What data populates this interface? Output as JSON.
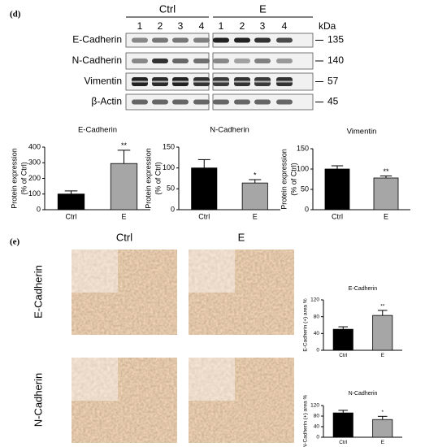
{
  "panel_d": {
    "label": "(d)",
    "groups": [
      "Ctrl",
      "E"
    ],
    "lanes": [
      "1",
      "2",
      "3",
      "4",
      "1",
      "2",
      "3",
      "4"
    ],
    "unit": "kDa",
    "proteins": [
      {
        "name": "E-Cadherin",
        "weight": 135
      },
      {
        "name": "N-Cadherin",
        "weight": 140
      },
      {
        "name": "Vimentin",
        "weight": 57
      },
      {
        "name": "β-Actin",
        "weight": 45
      }
    ]
  },
  "panel_e": {
    "label": "(e)",
    "columns": [
      "Ctrl",
      "E"
    ],
    "rows": [
      "E-Cadherin",
      "N-Cadherin"
    ]
  },
  "chart_data": [
    {
      "type": "bar",
      "title": "E-Cadherin",
      "y_label": [
        "Protein expression",
        "(% of Ctrl)"
      ],
      "categories": [
        "Ctrl",
        "E"
      ],
      "values": [
        100,
        295
      ],
      "errors": [
        20,
        85
      ],
      "colors": [
        "#000000",
        "#a6a6a6"
      ],
      "ylim": [
        0,
        400
      ],
      "yticks": [
        0,
        100,
        200,
        300,
        400
      ],
      "annotation": "**"
    },
    {
      "type": "bar",
      "title": "N-Cadherin",
      "y_label": [
        "Protein expression",
        "(% of Ctrl)"
      ],
      "categories": [
        "Ctrl",
        "E"
      ],
      "values": [
        100,
        64
      ],
      "errors": [
        20,
        8
      ],
      "colors": [
        "#000000",
        "#a6a6a6"
      ],
      "ylim": [
        0,
        150
      ],
      "yticks": [
        0,
        50,
        100,
        150
      ],
      "annotation": "*"
    },
    {
      "type": "bar",
      "title": "Vimentin",
      "y_label": [
        "Protein expression",
        "(% of Ctrl)"
      ],
      "categories": [
        "Ctrl",
        "E"
      ],
      "values": [
        100,
        78
      ],
      "errors": [
        8,
        5
      ],
      "colors": [
        "#000000",
        "#a6a6a6"
      ],
      "ylim": [
        0,
        150
      ],
      "yticks": [
        0,
        50,
        100,
        150
      ],
      "annotation": "**"
    },
    {
      "type": "bar",
      "title": "E-Cadherin",
      "y_label": [
        "E-Cadherin (+) area %"
      ],
      "categories": [
        "Ctrl",
        "E"
      ],
      "values": [
        50,
        83
      ],
      "errors": [
        6,
        12
      ],
      "colors": [
        "#000000",
        "#a6a6a6"
      ],
      "ylim": [
        0,
        120
      ],
      "yticks": [
        0,
        40,
        80,
        120
      ],
      "annotation": "**"
    },
    {
      "type": "bar",
      "title": "N-Cadherin",
      "y_label": [
        "N-Cadherin (+) area %"
      ],
      "categories": [
        "Ctrl",
        "E"
      ],
      "values": [
        92,
        67
      ],
      "errors": [
        10,
        12
      ],
      "colors": [
        "#000000",
        "#a6a6a6"
      ],
      "ylim": [
        0,
        120
      ],
      "yticks": [
        0,
        40,
        80,
        120
      ],
      "annotation": "*"
    }
  ]
}
